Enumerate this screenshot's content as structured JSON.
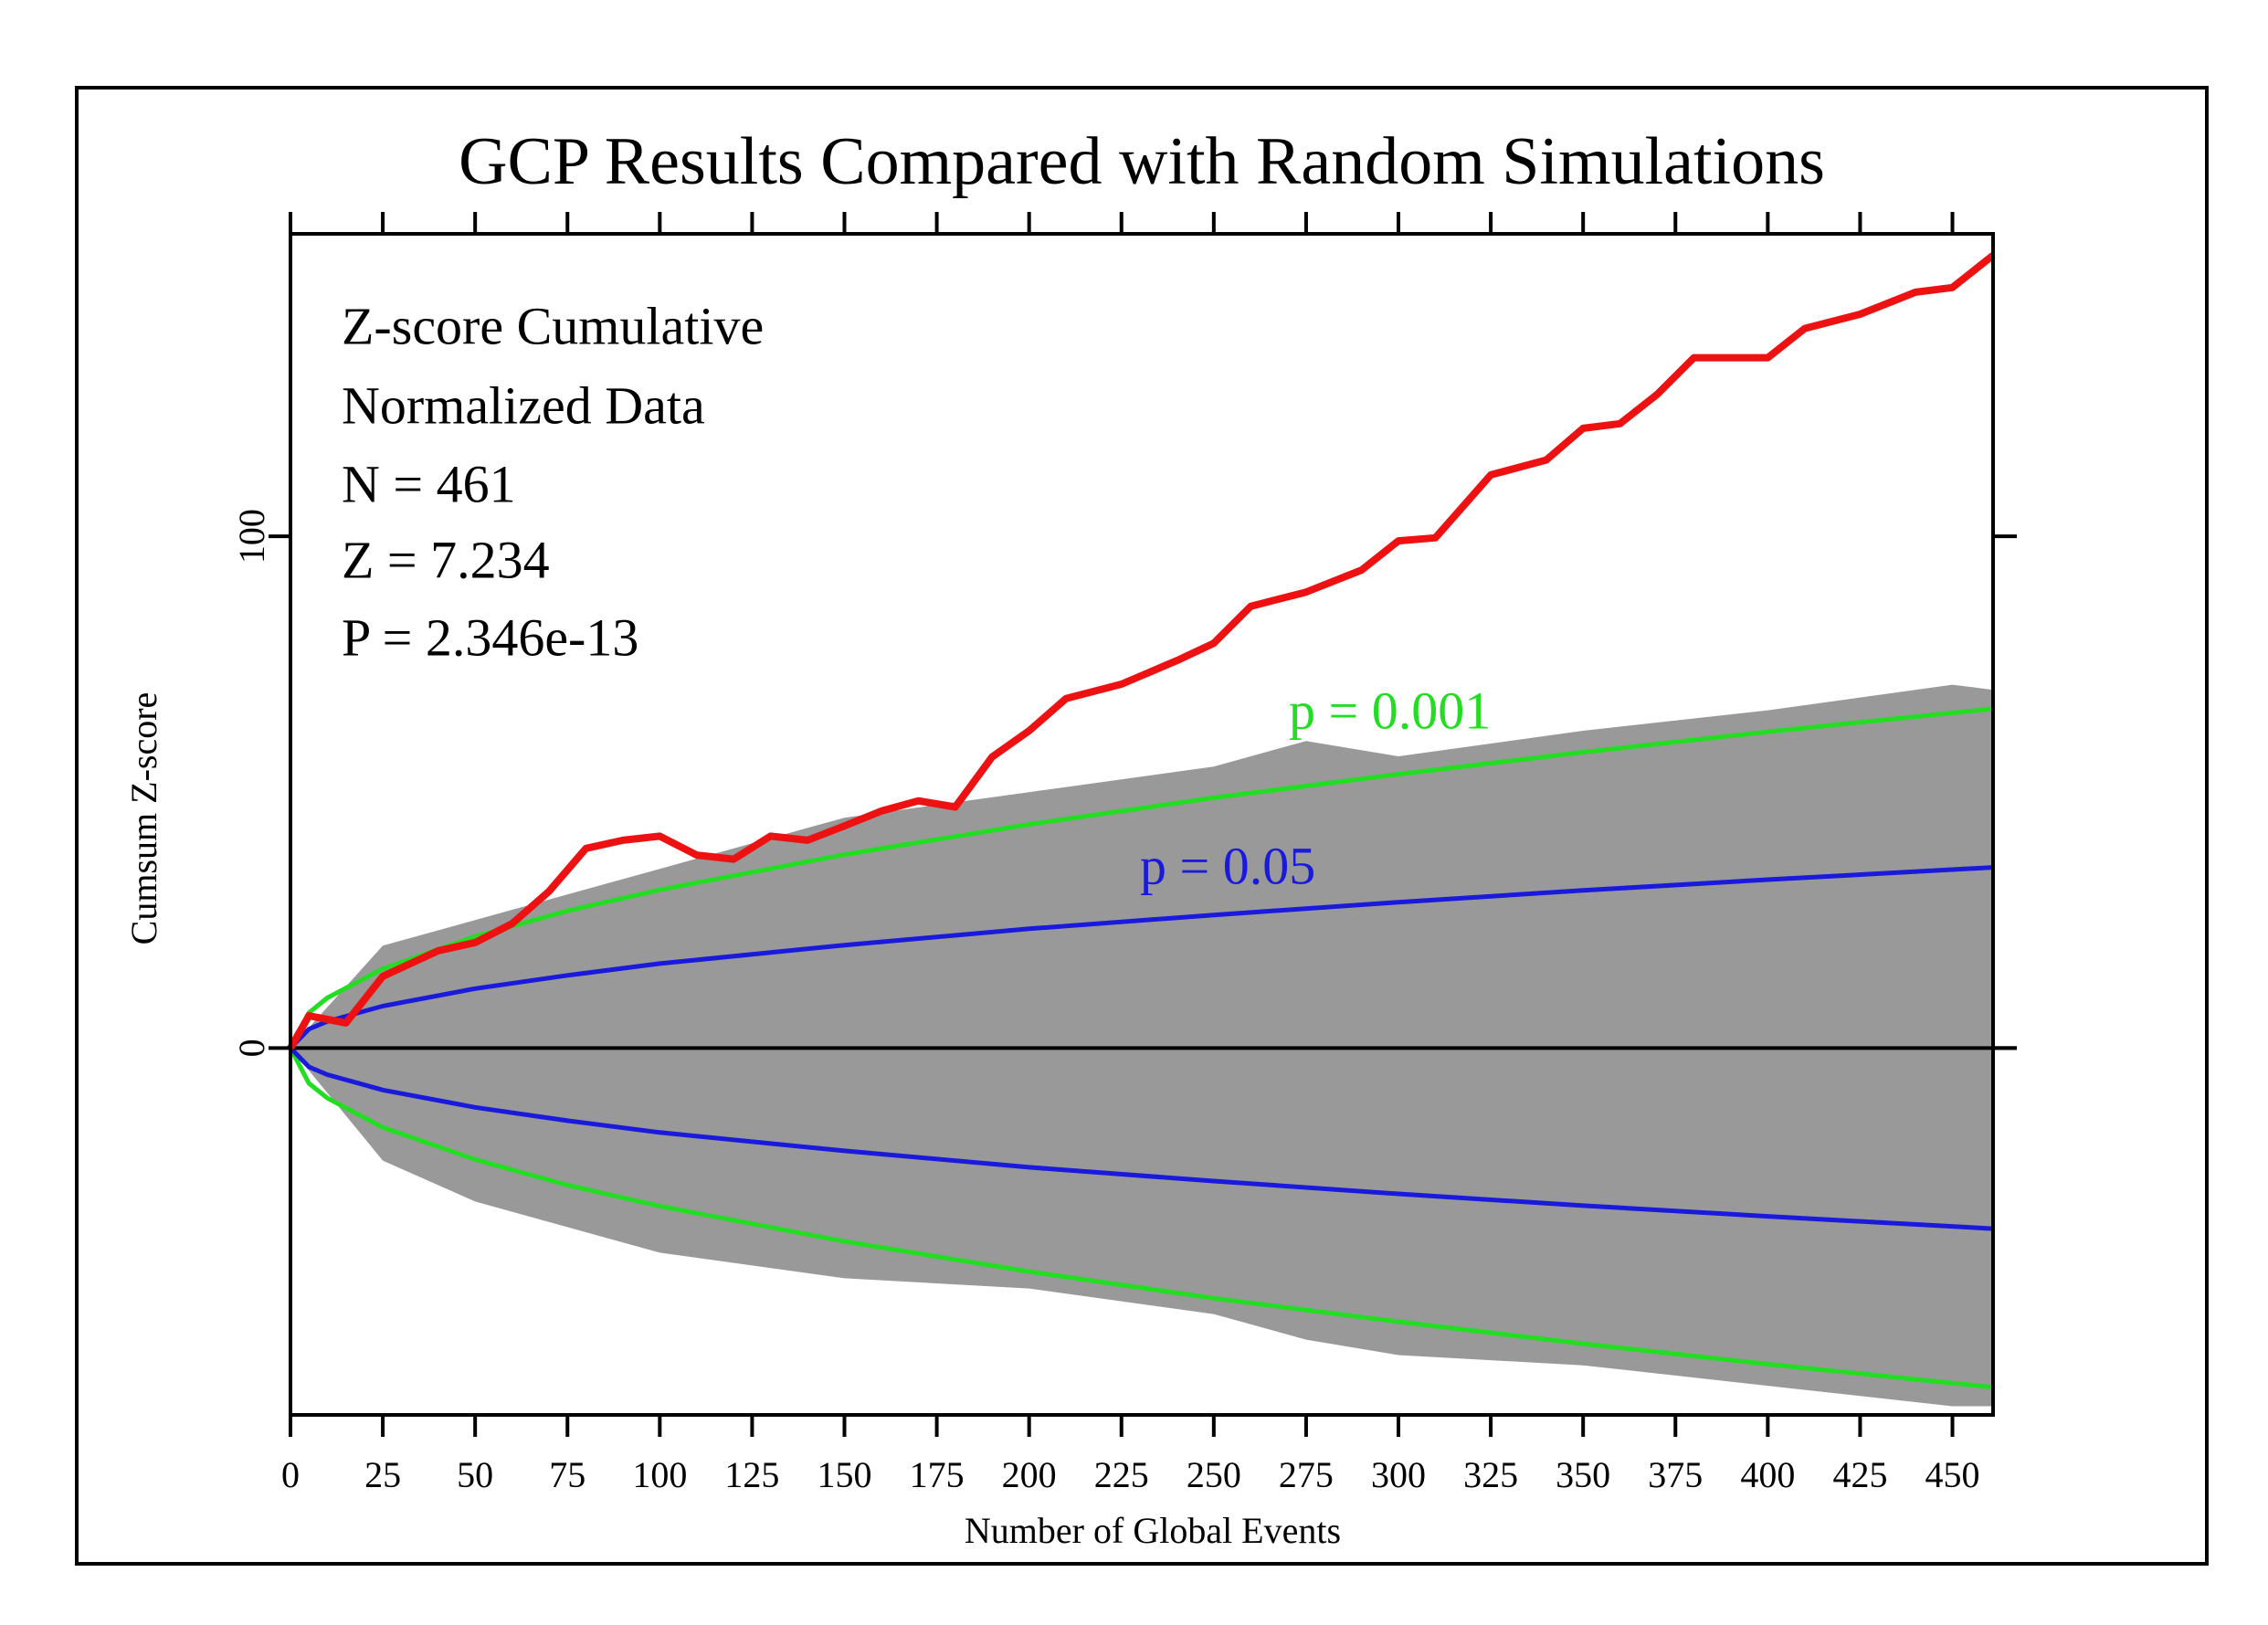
{
  "chart_data": {
    "type": "line",
    "title": "GCP Results Compared with Random Simulations",
    "xlabel": "Number of Global Events",
    "ylabel": "Cumsum Z-score",
    "annotations": [
      "Z-score Cumulative",
      "Normalized Data",
      "N = 461",
      "Z = 7.234",
      "P = 2.346e-13"
    ],
    "xlim": [
      0,
      461
    ],
    "ylim": [
      -71.7,
      159.1
    ],
    "xticks": [
      0,
      25,
      50,
      75,
      100,
      125,
      150,
      175,
      200,
      225,
      250,
      275,
      300,
      325,
      350,
      375,
      400,
      425,
      450
    ],
    "yticks": [
      0,
      100
    ],
    "reference_line": 0,
    "band": {
      "color": "#999999",
      "x": [
        0,
        25,
        50,
        100,
        150,
        200,
        250,
        275,
        300,
        350,
        400,
        450,
        461
      ],
      "upper": [
        0,
        20,
        25,
        35,
        45,
        50,
        55,
        60,
        57,
        62,
        66,
        71,
        70
      ],
      "lower": [
        0,
        -22,
        -30,
        -40,
        -45,
        -47,
        -52,
        -57,
        -60,
        -62,
        -66,
        -70,
        -70
      ]
    },
    "envelopes": [
      {
        "label": "p = 0.001",
        "color": "#22dd22",
        "x": [
          0,
          5,
          10,
          25,
          50,
          75,
          100,
          150,
          200,
          250,
          300,
          350,
          400,
          461
        ],
        "upper": [
          0,
          6.9,
          9.8,
          15.5,
          21.8,
          26.8,
          30.9,
          37.8,
          43.7,
          48.9,
          53.5,
          57.8,
          61.8,
          66.3
        ],
        "lower": [
          0,
          -6.9,
          -9.8,
          -15.5,
          -21.8,
          -26.8,
          -30.9,
          -37.8,
          -43.7,
          -48.9,
          -53.5,
          -57.8,
          -61.8,
          -66.3
        ]
      },
      {
        "label": "p = 0.05",
        "color": "#1a1add",
        "x": [
          0,
          5,
          10,
          25,
          50,
          75,
          100,
          150,
          200,
          250,
          300,
          350,
          400,
          461
        ],
        "upper": [
          0,
          3.7,
          5.2,
          8.2,
          11.6,
          14.2,
          16.5,
          20.1,
          23.3,
          26.0,
          28.5,
          30.8,
          32.9,
          35.3
        ],
        "lower": [
          0,
          -3.7,
          -5.2,
          -8.2,
          -11.6,
          -14.2,
          -16.5,
          -20.1,
          -23.3,
          -26.0,
          -28.5,
          -30.8,
          -32.9,
          -35.3
        ]
      }
    ],
    "series": [
      {
        "color": "#ee1111",
        "x": [
          0,
          5,
          15,
          25,
          40,
          50,
          60,
          70,
          80,
          90,
          100,
          110,
          120,
          130,
          140,
          150,
          160,
          170,
          180,
          190,
          200,
          210,
          225,
          240,
          250,
          260,
          275,
          290,
          300,
          310,
          325,
          340,
          350,
          360,
          370,
          380,
          400,
          410,
          425,
          440,
          450,
          461
        ],
        "values": [
          0,
          6.3,
          4.9,
          14,
          19,
          20.6,
          24.3,
          30.6,
          39,
          40.6,
          41.4,
          37.7,
          36.9,
          41.4,
          40.6,
          43.4,
          46.3,
          48.3,
          47.1,
          56.9,
          62,
          68.3,
          71.1,
          75.7,
          79.1,
          86.3,
          89.1,
          93.4,
          99.1,
          99.7,
          112,
          114.9,
          121.1,
          122,
          127.7,
          134.9,
          134.9,
          140.6,
          143.4,
          147.7,
          148.6,
          154.9
        ]
      }
    ]
  }
}
